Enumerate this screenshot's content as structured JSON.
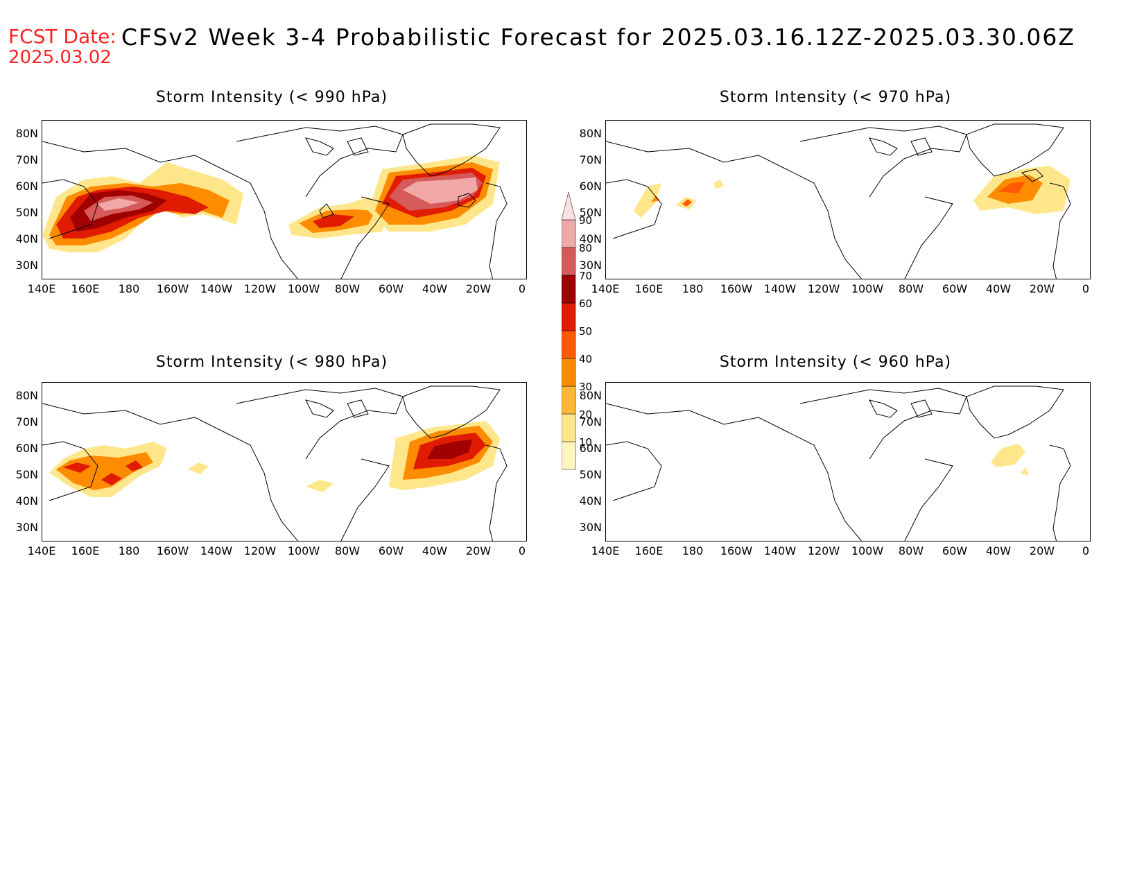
{
  "header": {
    "fcst_label": "FCST Date:",
    "fcst_date": "2025.03.02",
    "title": "CFSv2 Week 3-4 Probabilistic Forecast for 2025.03.16.12Z-2025.03.30.06Z"
  },
  "axes": {
    "lat_labels": [
      "80N",
      "70N",
      "60N",
      "50N",
      "40N",
      "30N"
    ],
    "lon_labels": [
      "140E",
      "160E",
      "180",
      "160W",
      "140W",
      "120W",
      "100W",
      "80W",
      "60W",
      "40W",
      "20W",
      "0"
    ]
  },
  "panels": [
    {
      "title": "Storm Intensity (< 990 hPa)",
      "threshold_hpa": 990
    },
    {
      "title": "Storm Intensity (< 970 hPa)",
      "threshold_hpa": 970
    },
    {
      "title": "Storm Intensity (< 980 hPa)",
      "threshold_hpa": 980
    },
    {
      "title": "Storm Intensity (< 960 hPa)",
      "threshold_hpa": 960
    }
  ],
  "colorbar": {
    "levels": [
      "10",
      "20",
      "30",
      "40",
      "50",
      "60",
      "70",
      "80",
      "90"
    ],
    "colors": [
      "#fff5c0",
      "#ffe68a",
      "#ffb833",
      "#ff8c00",
      "#ff5a00",
      "#e01b00",
      "#a00000",
      "#d75a5a",
      "#f0a8a8",
      "#fde0e0"
    ]
  }
}
